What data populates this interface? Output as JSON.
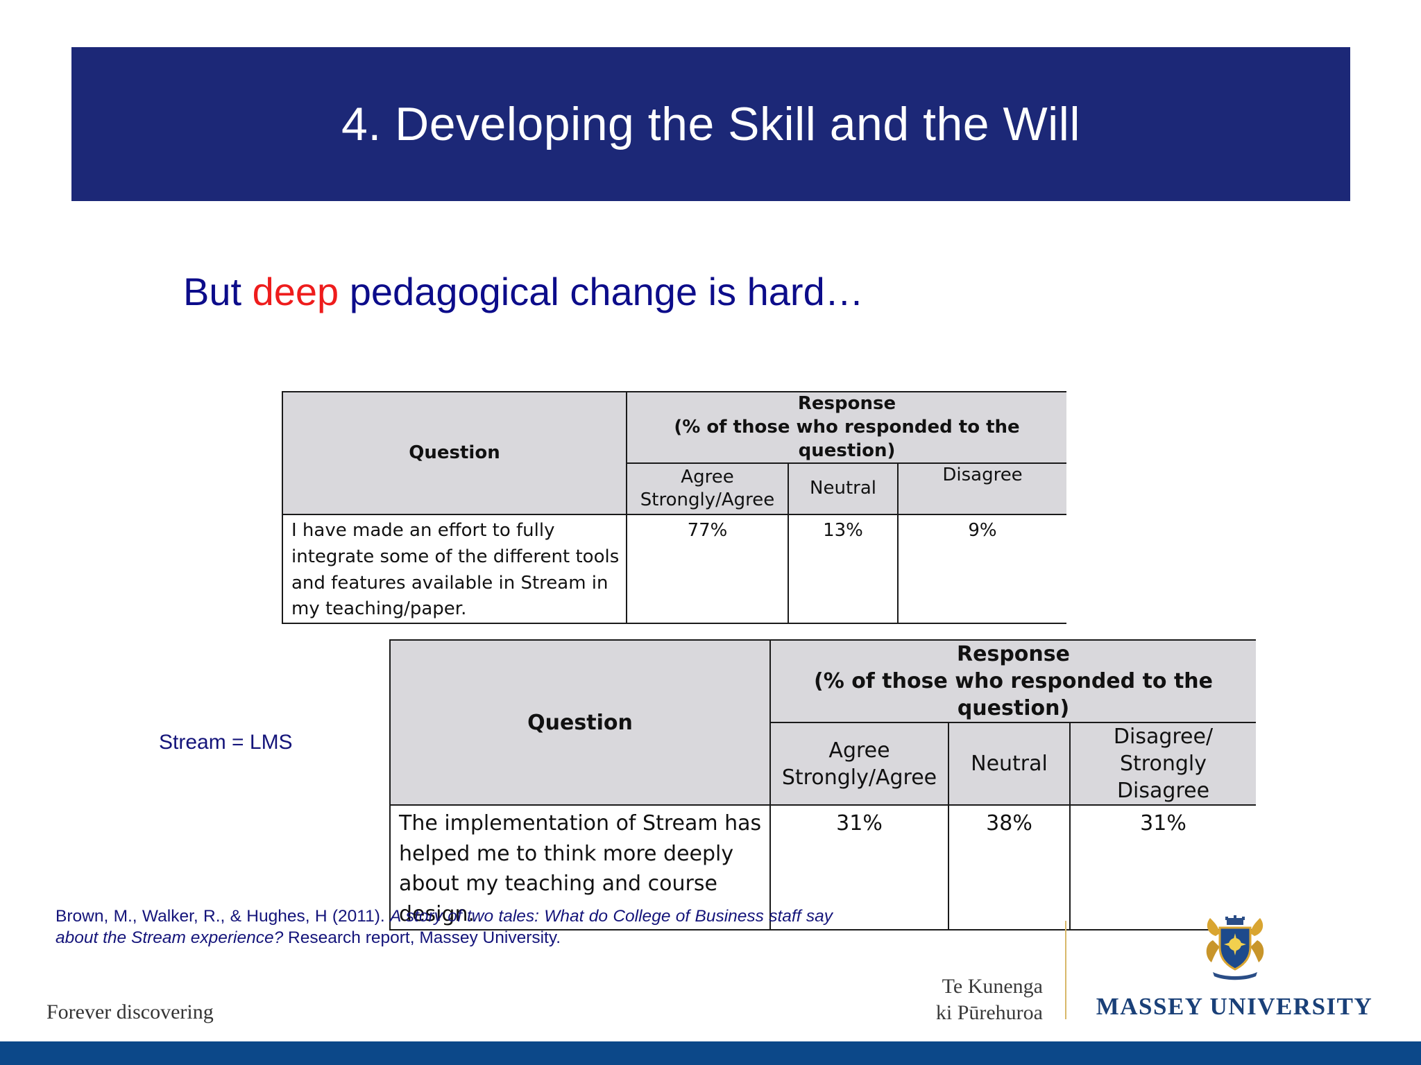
{
  "slide": {
    "title": "4. Developing the Skill and the Will",
    "subtitle_before": "But ",
    "subtitle_accent": "deep",
    "subtitle_after": " pedagogical change is hard…",
    "accent_color": "#ee1c1c",
    "banner_color": "#1c2877"
  },
  "table1": {
    "question_header": "Question",
    "response_header": "Response",
    "response_subheader": "(% of those who responded to the question)",
    "columns": [
      "Agree Strongly/Agree",
      "Neutral",
      "Disagree"
    ],
    "row": {
      "question": "I have made an effort to fully integrate some of the different tools and features available in Stream in my teaching/paper.",
      "values": [
        "77%",
        "13%",
        "9%"
      ]
    }
  },
  "table2": {
    "question_header": "Question",
    "response_header": "Response",
    "response_subheader": "(% of those who responded to the question)",
    "columns": [
      "Agree Strongly/Agree",
      "Neutral",
      "Disagree/ Strongly Disagree"
    ],
    "row": {
      "question": "The implementation of Stream has helped me to think more deeply about my teaching and course design.",
      "values": [
        "31%",
        "38%",
        "31%"
      ]
    }
  },
  "side_note": "Stream = LMS",
  "citation": {
    "authors": "Brown, M., Walker, R., & Hughes, H (2011). ",
    "title": "A story of two tales: What do College of Business staff say about the Stream experience?",
    "rest": " Research report, Massey University."
  },
  "footer": {
    "tagline": "Forever discovering",
    "maori_line1": "Te Kunenga",
    "maori_line2": "ki Pūrehuroa",
    "university": "MASSEY UNIVERSITY",
    "crest_icon": "massey-crest-icon",
    "bar_color": "#0c4889"
  }
}
